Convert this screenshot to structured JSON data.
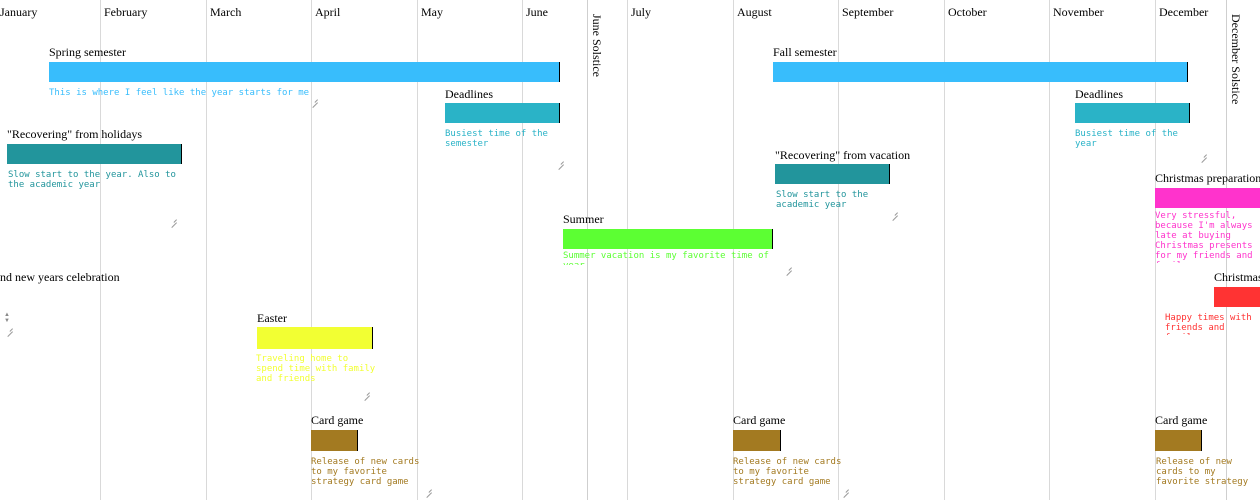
{
  "months": [
    "January",
    "February",
    "March",
    "April",
    "May",
    "June",
    "July",
    "August",
    "September",
    "October",
    "November",
    "December"
  ],
  "solstices": {
    "june": "June Solstice",
    "december": "December Solstice"
  },
  "events": {
    "spring": {
      "title": "Spring semester",
      "note": "This is where I feel like the year starts for me",
      "color": "#38bdfc"
    },
    "deadlines1": {
      "title": "Deadlines",
      "note": "Busiest time of the semester",
      "color": "#2ab3c7"
    },
    "recovering1": {
      "title": "\"Recovering\" from holidays",
      "note": "Slow start to the year. Also to the academic year",
      "color": "#22959c"
    },
    "fall": {
      "title": "Fall semester",
      "note": "",
      "color": "#38bdfc"
    },
    "deadlines2": {
      "title": "Deadlines",
      "note": "Busiest time of the year",
      "color": "#2ab3c7"
    },
    "recovering2": {
      "title": "\"Recovering\" from vacation",
      "note": "Slow start to the academic year",
      "color": "#22959c"
    },
    "christmas_prep": {
      "title": "Christmas preparations",
      "note": "Very stressful, because I'm always late at buying Christmas presents for my friends and family",
      "color": "#ff33cc"
    },
    "summer": {
      "title": "Summer",
      "note": "Summer vacation is my favorite time of year",
      "color": "#5cff33"
    },
    "newyears": {
      "title": "nd new years celebration",
      "note": "",
      "color": "#ff3333"
    },
    "christmas": {
      "title": "Christmas",
      "note": "Happy times with friends and family",
      "color": "#ff3333"
    },
    "easter": {
      "title": "Easter",
      "note": "Traveling home to spend time with family and friends",
      "color": "#f2ff33"
    },
    "card1": {
      "title": "Card game",
      "note": "Release of new cards to my favorite strategy card game",
      "color": "#a37a21"
    },
    "card2": {
      "title": "Card game",
      "note": "Release of new cards to my favorite strategy card game",
      "color": "#a37a21"
    },
    "card3": {
      "title": "Card game",
      "note": "Release of new cards to my favorite strategy card game",
      "color": "#a37a21"
    }
  }
}
